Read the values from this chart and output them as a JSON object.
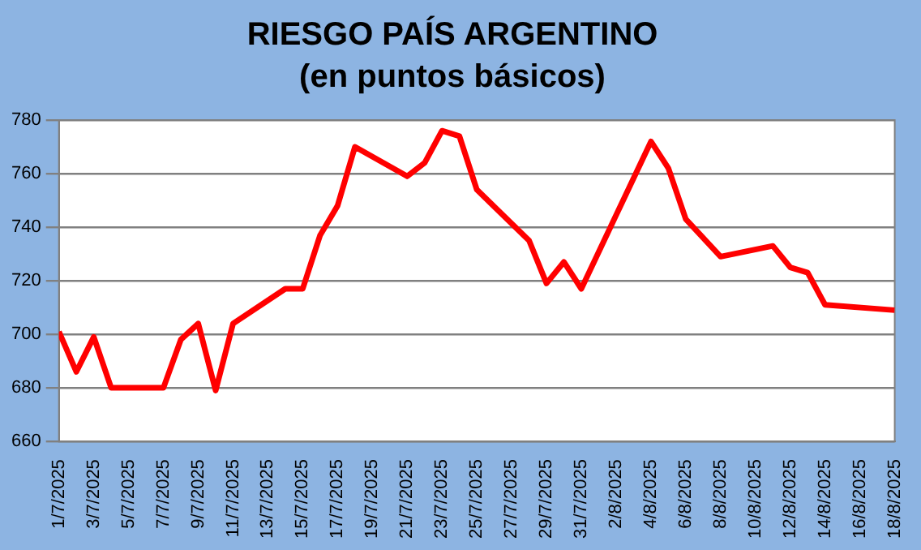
{
  "chart_data": {
    "type": "line",
    "title": "RIESGO PAÍS ARGENTINO",
    "subtitle": "(en puntos básicos)",
    "x": [
      "2025-07-01",
      "2025-07-02",
      "2025-07-03",
      "2025-07-04",
      "2025-07-07",
      "2025-07-08",
      "2025-07-09",
      "2025-07-10",
      "2025-07-11",
      "2025-07-14",
      "2025-07-15",
      "2025-07-16",
      "2025-07-17",
      "2025-07-18",
      "2025-07-21",
      "2025-07-22",
      "2025-07-23",
      "2025-07-24",
      "2025-07-25",
      "2025-07-28",
      "2025-07-29",
      "2025-07-30",
      "2025-07-31",
      "2025-08-04",
      "2025-08-05",
      "2025-08-06",
      "2025-08-08",
      "2025-08-11",
      "2025-08-12",
      "2025-08-13",
      "2025-08-14",
      "2025-08-18"
    ],
    "series": [
      {
        "color": "#ff0000",
        "values": [
          701,
          686,
          699,
          680,
          680,
          698,
          704,
          679,
          704,
          717,
          717,
          737,
          748,
          770,
          759,
          764,
          776,
          774,
          754,
          735,
          719,
          727,
          717,
          772,
          762,
          743,
          729,
          733,
          725,
          723,
          711,
          709
        ]
      }
    ],
    "xlim": [
      "2025-07-01",
      "2025-08-18"
    ],
    "xticks": [
      {
        "value": "2025-07-01",
        "label": "1/7/2025"
      },
      {
        "value": "2025-07-03",
        "label": "3/7/2025"
      },
      {
        "value": "2025-07-05",
        "label": "5/7/2025"
      },
      {
        "value": "2025-07-07",
        "label": "7/7/2025"
      },
      {
        "value": "2025-07-09",
        "label": "9/7/2025"
      },
      {
        "value": "2025-07-11",
        "label": "11/7/2025"
      },
      {
        "value": "2025-07-13",
        "label": "13/7/2025"
      },
      {
        "value": "2025-07-15",
        "label": "15/7/2025"
      },
      {
        "value": "2025-07-17",
        "label": "17/7/2025"
      },
      {
        "value": "2025-07-19",
        "label": "19/7/2025"
      },
      {
        "value": "2025-07-21",
        "label": "21/7/2025"
      },
      {
        "value": "2025-07-23",
        "label": "23/7/2025"
      },
      {
        "value": "2025-07-25",
        "label": "25/7/2025"
      },
      {
        "value": "2025-07-27",
        "label": "27/7/2025"
      },
      {
        "value": "2025-07-29",
        "label": "29/7/2025"
      },
      {
        "value": "2025-07-31",
        "label": "31/7/2025"
      },
      {
        "value": "2025-08-02",
        "label": "2/8/2025"
      },
      {
        "value": "2025-08-04",
        "label": "4/8/2025"
      },
      {
        "value": "2025-08-06",
        "label": "6/8/2025"
      },
      {
        "value": "2025-08-08",
        "label": "8/8/2025"
      },
      {
        "value": "2025-08-10",
        "label": "10/8/2025"
      },
      {
        "value": "2025-08-12",
        "label": "12/8/2025"
      },
      {
        "value": "2025-08-14",
        "label": "14/8/2025"
      },
      {
        "value": "2025-08-16",
        "label": "16/8/2025"
      },
      {
        "value": "2025-08-18",
        "label": "18/8/2025"
      }
    ],
    "ylim": [
      660,
      780
    ],
    "yticks": [
      660,
      680,
      700,
      720,
      740,
      760,
      780
    ],
    "grid": "y",
    "legend": false,
    "marker": "none",
    "line_style": "solid"
  }
}
